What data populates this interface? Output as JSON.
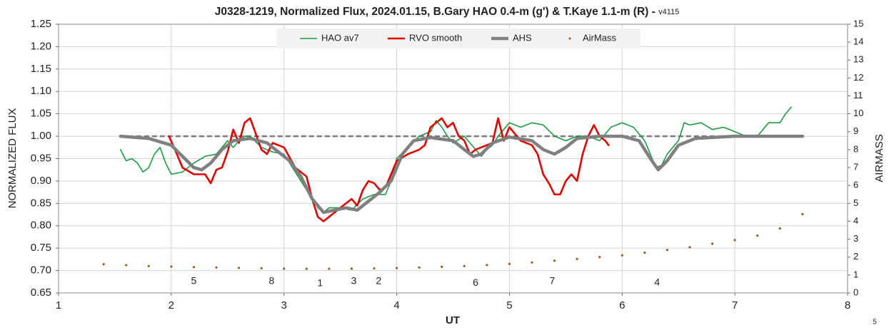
{
  "chart_data": {
    "type": "line",
    "title": "J0328-1219, Normalized Flux, 2024.01.15, B.Gary HAO 0.4-m (g') & T.Kaye 1.1-m (R) - ",
    "subtitle": "v4115",
    "x_label": "UT",
    "y_label": "NORMALIZED FLUX",
    "y2_label": "AIRMASS",
    "footer_text": "5",
    "xlim": [
      1,
      8
    ],
    "xticks": [
      1,
      2,
      3,
      4,
      5,
      6,
      7,
      8
    ],
    "ylim": [
      0.65,
      1.25
    ],
    "yticks": [
      {
        "value": 0.65,
        "label": "0.65"
      },
      {
        "value": 0.7,
        "label": "0.70"
      },
      {
        "value": 0.75,
        "label": "0.75"
      },
      {
        "value": 0.8,
        "label": "0.80"
      },
      {
        "value": 0.85,
        "label": "0.85"
      },
      {
        "value": 0.9,
        "label": "0.90"
      },
      {
        "value": 0.95,
        "label": "0.95"
      },
      {
        "value": 1,
        "label": "1.00"
      },
      {
        "value": 1.05,
        "label": "1.05"
      },
      {
        "value": 1.1,
        "label": "1.10"
      },
      {
        "value": 1.15,
        "label": "1.15"
      },
      {
        "value": 1.2,
        "label": "1.20"
      },
      {
        "value": 1.25,
        "label": "1.25"
      }
    ],
    "y2lim": [
      0,
      15
    ],
    "y2ticks": [
      0,
      1,
      2,
      3,
      4,
      5,
      6,
      7,
      8,
      9,
      10,
      11,
      12,
      13,
      14,
      15
    ],
    "grid": true,
    "legend": "top",
    "reference_lines": [
      {
        "y": 1,
        "xmin": 1.55,
        "xmax": 7.6,
        "color": "#7a7a7a",
        "dash": true
      }
    ],
    "series": [
      {
        "name": "HAO av7",
        "color": "#1f9a47",
        "width": 1.6,
        "style": "line",
        "x": [
          1.55,
          1.6,
          1.65,
          1.7,
          1.75,
          1.8,
          1.85,
          1.9,
          1.95,
          2.0,
          2.1,
          2.2,
          2.3,
          2.4,
          2.45,
          2.5,
          2.55,
          2.6,
          2.65,
          2.7,
          2.8,
          2.9,
          3.0,
          3.05,
          3.1,
          3.2,
          3.3,
          3.35,
          3.4,
          3.5,
          3.6,
          3.7,
          3.8,
          3.9,
          3.95,
          4.0,
          4.1,
          4.2,
          4.3,
          4.35,
          4.4,
          4.45,
          4.5,
          4.6,
          4.7,
          4.75,
          4.8,
          4.85,
          4.9,
          5.0,
          5.1,
          5.2,
          5.3,
          5.4,
          5.5,
          5.6,
          5.7,
          5.8,
          5.9,
          6.0,
          6.1,
          6.2,
          6.3,
          6.35,
          6.4,
          6.5,
          6.55,
          6.6,
          6.7,
          6.8,
          6.9,
          7.0,
          7.1,
          7.2,
          7.3,
          7.4,
          7.45,
          7.5
        ],
        "values": [
          0.97,
          0.945,
          0.95,
          0.94,
          0.92,
          0.93,
          0.96,
          0.975,
          0.94,
          0.915,
          0.92,
          0.94,
          0.955,
          0.96,
          0.975,
          0.99,
          0.975,
          0.99,
          1.0,
          1.0,
          0.975,
          0.965,
          0.96,
          0.94,
          0.92,
          0.88,
          0.84,
          0.83,
          0.84,
          0.84,
          0.835,
          0.86,
          0.87,
          0.87,
          0.9,
          0.95,
          0.975,
          1.0,
          1.01,
          1.035,
          1.02,
          1.0,
          0.985,
          1.0,
          0.97,
          0.955,
          0.97,
          0.98,
          1.0,
          1.03,
          1.02,
          1.03,
          1.025,
          1.0,
          0.99,
          1.0,
          1.0,
          0.99,
          1.02,
          1.03,
          1.02,
          0.99,
          0.93,
          0.935,
          0.96,
          0.99,
          1.03,
          1.025,
          1.03,
          1.015,
          1.02,
          1.01,
          1.0,
          1.0,
          1.03,
          1.03,
          1.05,
          1.065
        ]
      },
      {
        "name": "RVO smooth",
        "color": "#e00000",
        "width": 2.6,
        "style": "line",
        "x": [
          1.98,
          2.05,
          2.1,
          2.2,
          2.3,
          2.35,
          2.4,
          2.45,
          2.5,
          2.55,
          2.6,
          2.65,
          2.7,
          2.75,
          2.8,
          2.85,
          2.9,
          3.0,
          3.1,
          3.2,
          3.25,
          3.3,
          3.35,
          3.4,
          3.45,
          3.5,
          3.6,
          3.65,
          3.7,
          3.75,
          3.8,
          3.85,
          3.9,
          4.0,
          4.1,
          4.2,
          4.25,
          4.3,
          4.4,
          4.45,
          4.5,
          4.55,
          4.6,
          4.65,
          4.7,
          4.75,
          4.85,
          4.9,
          4.95,
          5.0,
          5.1,
          5.2,
          5.25,
          5.3,
          5.35,
          5.4,
          5.45,
          5.5,
          5.55,
          5.6,
          5.65,
          5.7,
          5.75,
          5.8,
          5.85,
          5.88
        ],
        "values": [
          1.0,
          0.96,
          0.93,
          0.915,
          0.915,
          0.895,
          0.925,
          0.93,
          0.965,
          1.015,
          0.985,
          1.03,
          1.04,
          1.005,
          0.97,
          0.96,
          0.985,
          0.975,
          0.93,
          0.91,
          0.86,
          0.82,
          0.81,
          0.82,
          0.83,
          0.84,
          0.86,
          0.845,
          0.88,
          0.9,
          0.895,
          0.88,
          0.885,
          0.945,
          0.96,
          0.97,
          0.98,
          1.02,
          1.04,
          1.02,
          1.03,
          1.0,
          0.99,
          0.96,
          0.97,
          0.975,
          0.985,
          1.04,
          0.99,
          1.02,
          0.99,
          0.98,
          0.96,
          0.915,
          0.895,
          0.87,
          0.87,
          0.9,
          0.915,
          0.9,
          0.96,
          1.0,
          1.025,
          1.0,
          0.99,
          0.98
        ]
      },
      {
        "name": "AHS",
        "color": "#808080",
        "width": 4.5,
        "style": "line",
        "x": [
          1.55,
          1.8,
          2.0,
          2.1,
          2.2,
          2.27,
          2.35,
          2.45,
          2.55,
          2.7,
          2.85,
          2.95,
          3.05,
          3.15,
          3.25,
          3.35,
          3.45,
          3.55,
          3.65,
          3.75,
          3.85,
          3.95,
          4.05,
          4.15,
          4.3,
          4.5,
          4.6,
          4.68,
          4.75,
          4.85,
          5.0,
          5.2,
          5.3,
          5.4,
          5.5,
          5.6,
          5.8,
          6.0,
          6.15,
          6.25,
          6.32,
          6.4,
          6.5,
          6.65,
          7.0,
          7.6
        ],
        "values": [
          1.0,
          0.995,
          0.98,
          0.955,
          0.93,
          0.925,
          0.94,
          0.97,
          0.99,
          0.995,
          0.985,
          0.965,
          0.945,
          0.91,
          0.86,
          0.83,
          0.835,
          0.84,
          0.835,
          0.855,
          0.875,
          0.9,
          0.96,
          0.99,
          0.997,
          0.99,
          0.97,
          0.955,
          0.96,
          0.985,
          0.998,
          0.99,
          0.97,
          0.96,
          0.975,
          0.995,
          1.0,
          1.0,
          0.99,
          0.95,
          0.925,
          0.945,
          0.98,
          0.995,
          1.0,
          1.0
        ]
      },
      {
        "name": "AirMass",
        "color": "#9c5a1c",
        "width": 1,
        "style": "dots",
        "axis": "y2",
        "x": [
          1.4,
          1.6,
          1.8,
          2.0,
          2.2,
          2.4,
          2.6,
          2.8,
          3.0,
          3.2,
          3.4,
          3.6,
          3.8,
          4.0,
          4.2,
          4.4,
          4.6,
          4.8,
          5.0,
          5.2,
          5.4,
          5.6,
          5.8,
          6.0,
          6.2,
          6.4,
          6.6,
          6.8,
          7.0,
          7.2,
          7.4,
          7.6
        ],
        "values": [
          1.6,
          1.55,
          1.5,
          1.47,
          1.44,
          1.42,
          1.4,
          1.38,
          1.36,
          1.35,
          1.35,
          1.36,
          1.37,
          1.39,
          1.42,
          1.46,
          1.5,
          1.56,
          1.62,
          1.7,
          1.8,
          1.9,
          2.0,
          2.1,
          2.25,
          2.4,
          2.55,
          2.75,
          2.95,
          3.2,
          3.6,
          4.4
        ]
      }
    ],
    "annotations": [
      {
        "text": "5",
        "x": 2.2,
        "y": 0.676
      },
      {
        "text": "8",
        "x": 2.89,
        "y": 0.676
      },
      {
        "text": "1",
        "x": 3.32,
        "y": 0.671
      },
      {
        "text": "3",
        "x": 3.62,
        "y": 0.676
      },
      {
        "text": "2",
        "x": 3.84,
        "y": 0.676
      },
      {
        "text": "6",
        "x": 4.7,
        "y": 0.672
      },
      {
        "text": "7",
        "x": 5.38,
        "y": 0.676
      },
      {
        "text": "4",
        "x": 6.31,
        "y": 0.673
      }
    ]
  }
}
